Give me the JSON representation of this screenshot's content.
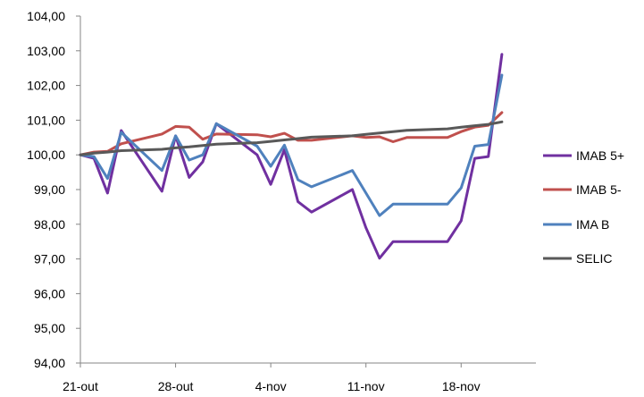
{
  "chart_data": {
    "type": "line",
    "title": "",
    "xlabel": "",
    "ylabel": "",
    "x_tick_labels": [
      "21-out",
      "28-out",
      "4-nov",
      "11-nov",
      "18-nov"
    ],
    "x_tick_days": [
      0,
      7,
      14,
      21,
      28
    ],
    "y_tick_labels": [
      "94,00",
      "95,00",
      "96,00",
      "97,00",
      "98,00",
      "99,00",
      "100,00",
      "101,00",
      "102,00",
      "103,00",
      "104,00"
    ],
    "ylim": [
      94,
      104
    ],
    "grid": false,
    "legend_position": "right",
    "x_days": [
      0,
      1,
      2,
      3,
      6,
      7,
      8,
      9,
      10,
      13,
      14,
      15,
      16,
      17,
      20,
      21,
      22,
      23,
      24,
      27,
      28,
      29,
      30,
      31
    ],
    "series": [
      {
        "name": "IMAB 5+",
        "color": "#7030A0",
        "values": [
          100.0,
          99.9,
          98.9,
          100.7,
          98.95,
          100.55,
          99.35,
          99.8,
          100.9,
          100.0,
          99.15,
          100.15,
          98.65,
          98.35,
          99.0,
          97.9,
          97.02,
          97.5,
          97.5,
          97.5,
          98.1,
          99.9,
          99.95,
          102.9
        ]
      },
      {
        "name": "IMAB 5-",
        "color": "#C0504D",
        "values": [
          100.0,
          100.08,
          100.1,
          100.32,
          100.6,
          100.82,
          100.8,
          100.45,
          100.6,
          100.58,
          100.52,
          100.62,
          100.42,
          100.42,
          100.55,
          100.5,
          100.52,
          100.38,
          100.5,
          100.5,
          100.67,
          100.8,
          100.85,
          101.22
        ]
      },
      {
        "name": "IMA B",
        "color": "#4F81BD",
        "values": [
          100.0,
          99.95,
          99.32,
          100.65,
          99.55,
          100.55,
          99.85,
          100.0,
          100.9,
          100.25,
          99.67,
          100.28,
          99.28,
          99.08,
          99.55,
          98.9,
          98.25,
          98.58,
          98.58,
          98.58,
          99.05,
          100.25,
          100.3,
          102.3
        ]
      },
      {
        "name": "SELIC",
        "color": "#595959",
        "values": [
          100.0,
          100.05,
          100.08,
          100.12,
          100.16,
          100.2,
          100.23,
          100.27,
          100.31,
          100.35,
          100.39,
          100.43,
          100.47,
          100.51,
          100.55,
          100.59,
          100.63,
          100.67,
          100.71,
          100.75,
          100.8,
          100.84,
          100.88,
          100.95
        ]
      }
    ]
  }
}
